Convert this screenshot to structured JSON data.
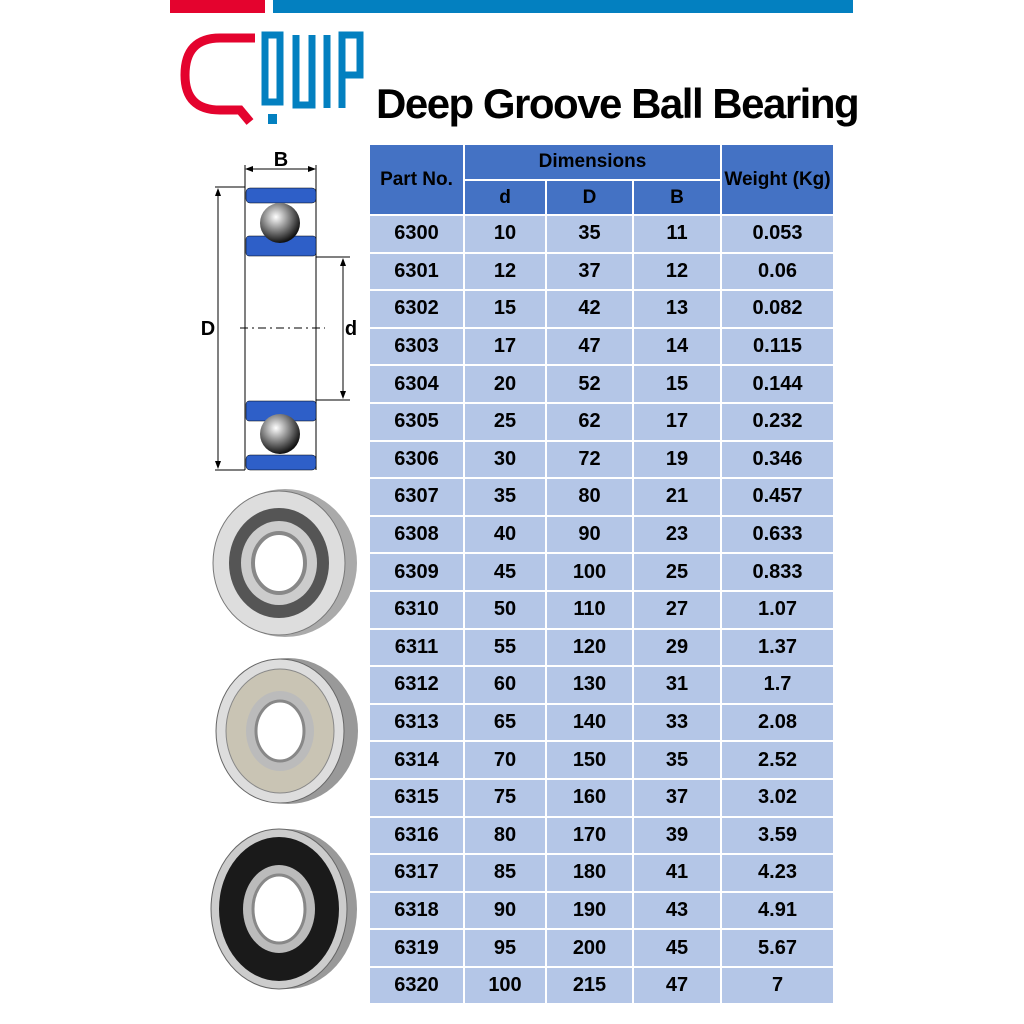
{
  "brand": {
    "logo_text": "QUIP",
    "colors": {
      "red": "#e4032e",
      "blue": "#0380c0",
      "header": "#4472c4",
      "cell": "#b4c6e7"
    }
  },
  "title": "Deep Groove Ball Bearing",
  "diagram": {
    "label_B": "B",
    "label_D": "D",
    "label_d": "d"
  },
  "photos": [
    "open-bearing",
    "metal-shielded-bearing",
    "rubber-sealed-bearing"
  ],
  "table": {
    "headers": {
      "part_no": "Part No.",
      "dimensions": "Dimensions",
      "d": "d",
      "D": "D",
      "B": "B",
      "weight": "Weight (Kg)"
    },
    "rows": [
      [
        "6300",
        "10",
        "35",
        "11",
        "0.053"
      ],
      [
        "6301",
        "12",
        "37",
        "12",
        "0.06"
      ],
      [
        "6302",
        "15",
        "42",
        "13",
        "0.082"
      ],
      [
        "6303",
        "17",
        "47",
        "14",
        "0.115"
      ],
      [
        "6304",
        "20",
        "52",
        "15",
        "0.144"
      ],
      [
        "6305",
        "25",
        "62",
        "17",
        "0.232"
      ],
      [
        "6306",
        "30",
        "72",
        "19",
        "0.346"
      ],
      [
        "6307",
        "35",
        "80",
        "21",
        "0.457"
      ],
      [
        "6308",
        "40",
        "90",
        "23",
        "0.633"
      ],
      [
        "6309",
        "45",
        "100",
        "25",
        "0.833"
      ],
      [
        "6310",
        "50",
        "110",
        "27",
        "1.07"
      ],
      [
        "6311",
        "55",
        "120",
        "29",
        "1.37"
      ],
      [
        "6312",
        "60",
        "130",
        "31",
        "1.7"
      ],
      [
        "6313",
        "65",
        "140",
        "33",
        "2.08"
      ],
      [
        "6314",
        "70",
        "150",
        "35",
        "2.52"
      ],
      [
        "6315",
        "75",
        "160",
        "37",
        "3.02"
      ],
      [
        "6316",
        "80",
        "170",
        "39",
        "3.59"
      ],
      [
        "6317",
        "85",
        "180",
        "41",
        "4.23"
      ],
      [
        "6318",
        "90",
        "190",
        "43",
        "4.91"
      ],
      [
        "6319",
        "95",
        "200",
        "45",
        "5.67"
      ],
      [
        "6320",
        "100",
        "215",
        "47",
        "7"
      ]
    ]
  }
}
